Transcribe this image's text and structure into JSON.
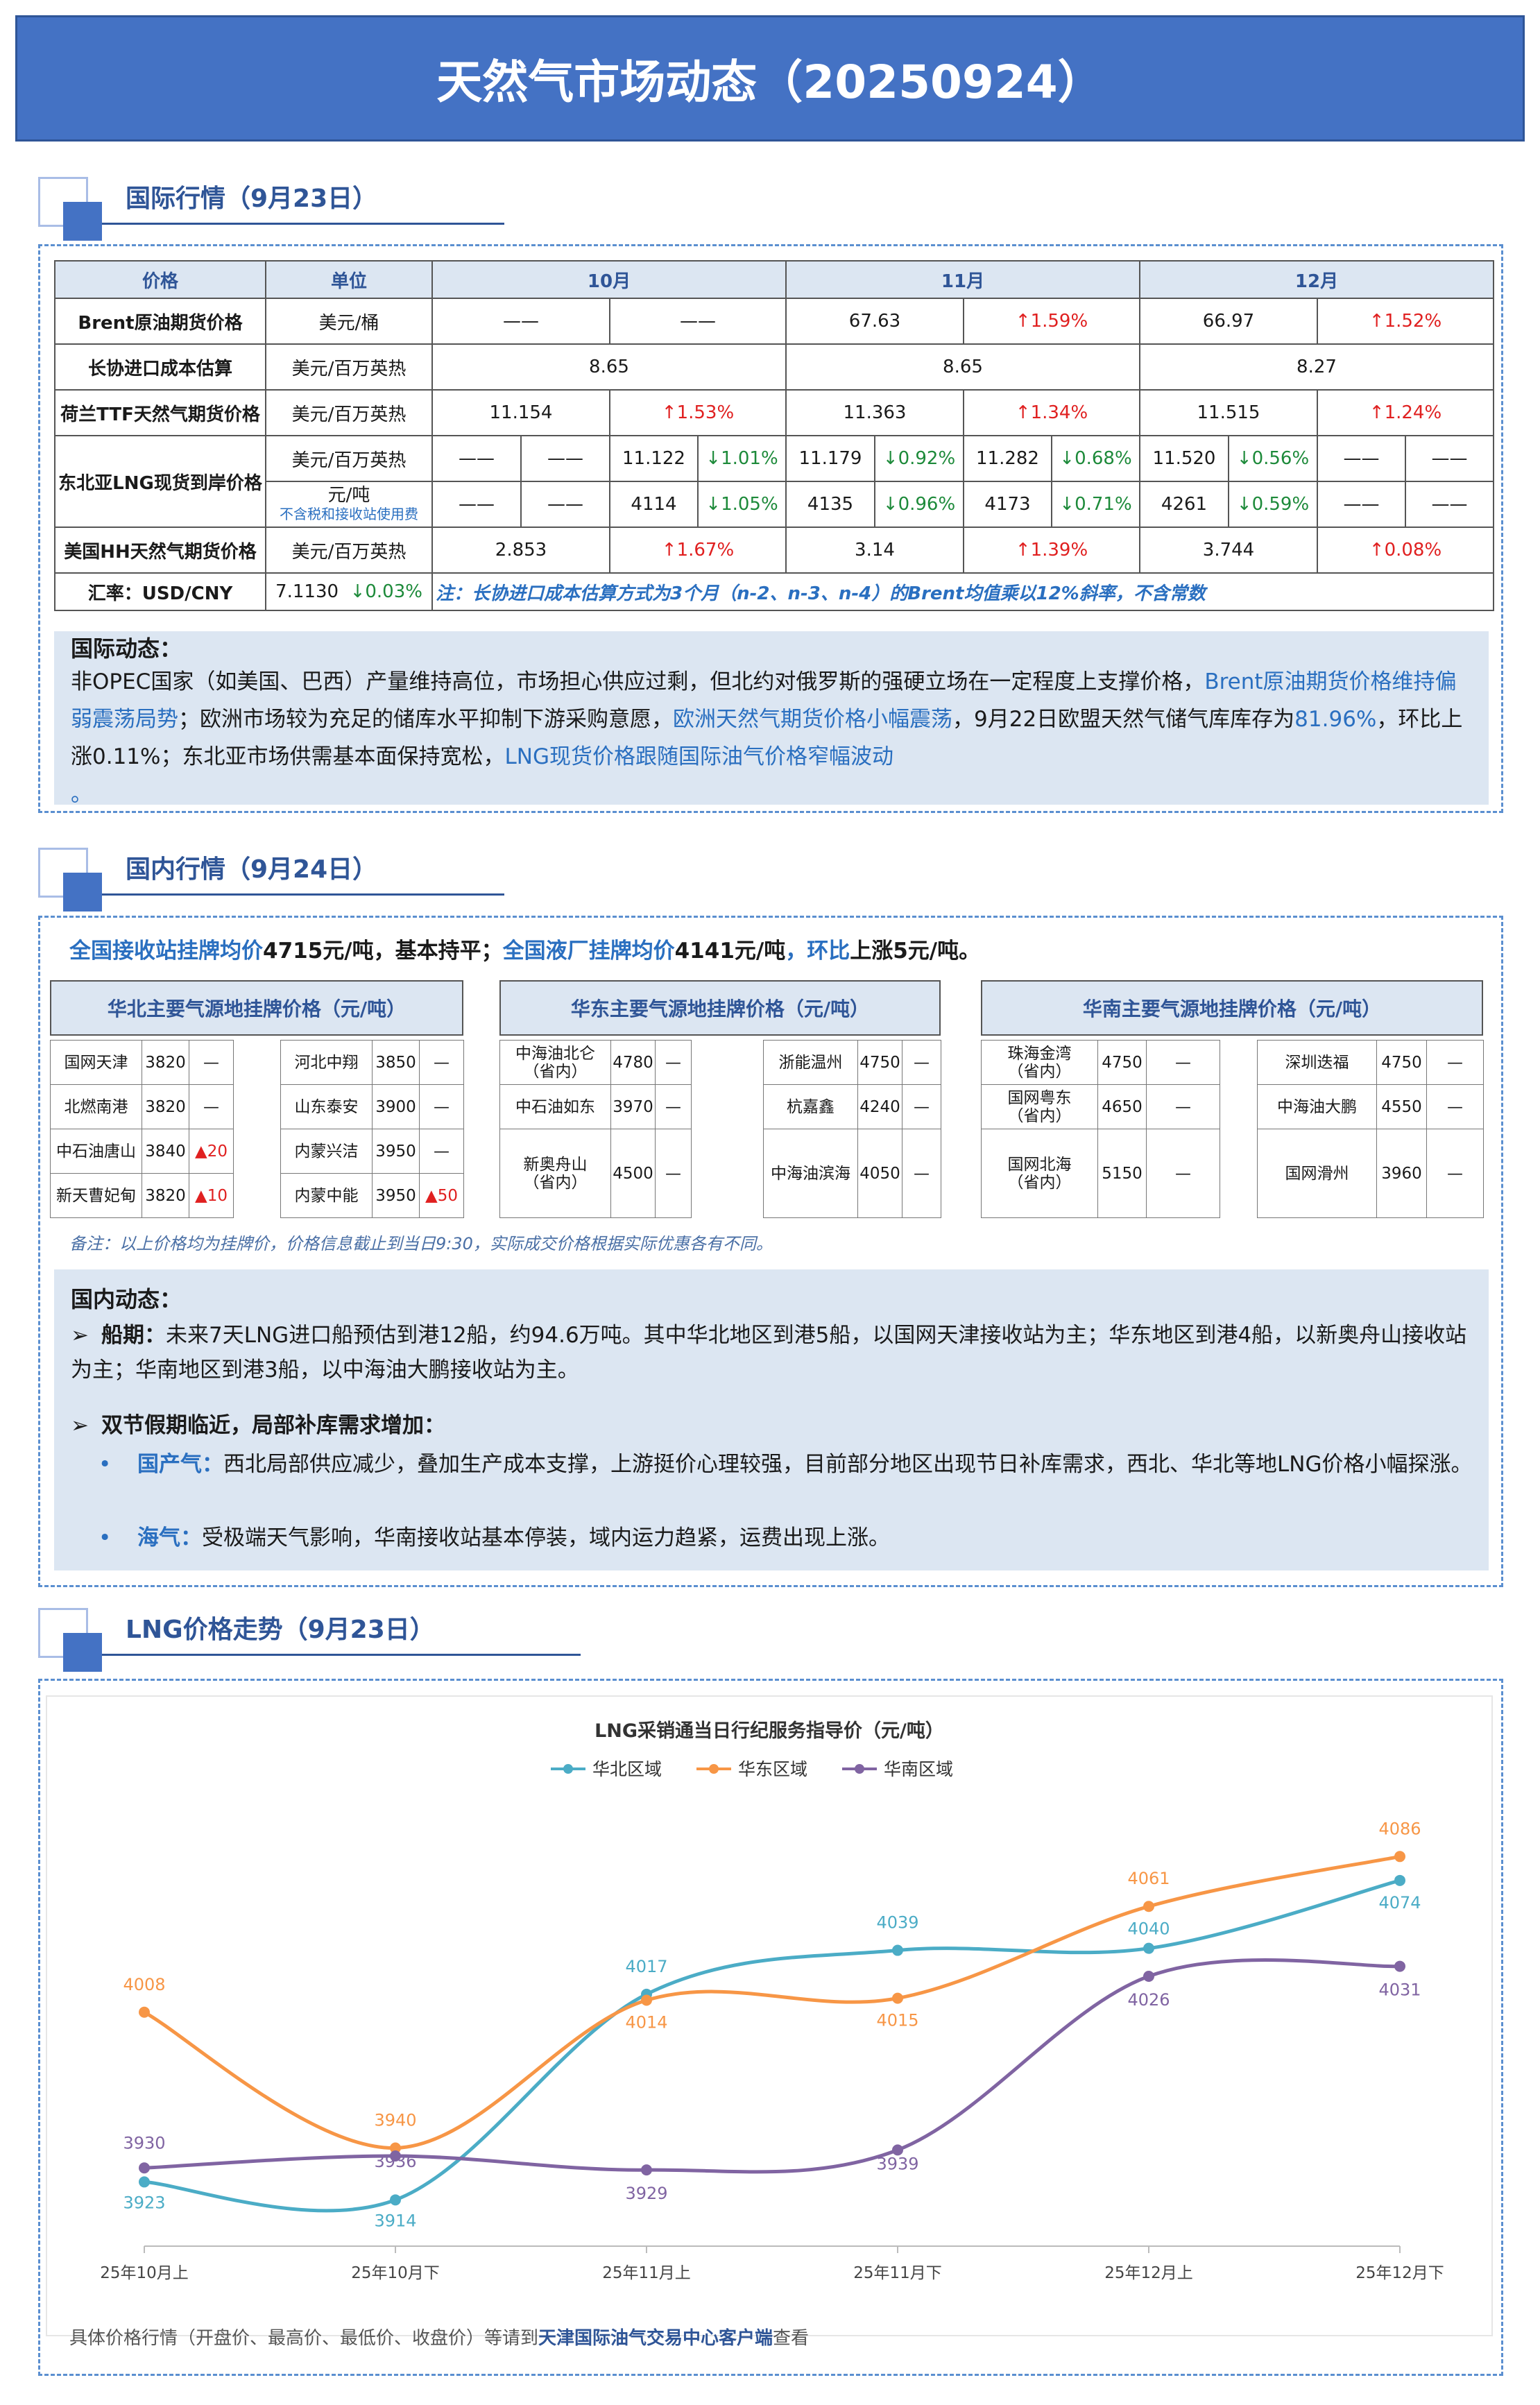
{
  "title": "天然气市场动态（20250924）",
  "sections": {
    "intl": "国际行情（9月23日）",
    "domestic": "国内行情（9月24日）",
    "trend": "LNG价格走势（9月23日）"
  },
  "intl_table": {
    "headers": [
      "价格",
      "单位",
      "10月",
      "11月",
      "12月"
    ],
    "brent": {
      "label": "Brent原油期货价格",
      "unit": "美元/桶",
      "c": [
        "——",
        "——",
        "67.63",
        "↑1.59%",
        "66.97",
        "↑1.52%"
      ]
    },
    "changxie": {
      "label": "长协进口成本估算",
      "unit": "美元/百万英热",
      "c": [
        "8.65",
        "8.65",
        "8.27"
      ]
    },
    "ttf": {
      "label": "荷兰TTF天然气期货价格",
      "unit": "美元/百万英热",
      "c": [
        "11.154",
        "↑1.53%",
        "11.363",
        "↑1.34%",
        "11.515",
        "↑1.24%"
      ]
    },
    "ne_lng": {
      "label": "东北亚LNG现货到岸价格",
      "unit1": "美元/百万英热",
      "unit2": "元/吨",
      "unit2_note": "不含税和接收站使用费",
      "row1": [
        "——",
        "——",
        "11.122",
        "↓1.01%",
        "11.179",
        "↓0.92%",
        "11.282",
        "↓0.68%",
        "11.520",
        "↓0.56%",
        "——",
        "——"
      ],
      "row2": [
        "——",
        "——",
        "4114",
        "↓1.05%",
        "4135",
        "↓0.96%",
        "4173",
        "↓0.71%",
        "4261",
        "↓0.59%",
        "——",
        "——"
      ]
    },
    "hh": {
      "label": "美国HH天然气期货价格",
      "unit": "美元/百万英热",
      "c": [
        "2.853",
        "↑1.67%",
        "3.14",
        "↑1.39%",
        "3.744",
        "↑0.08%"
      ]
    },
    "fx": {
      "label": "汇率：USD/CNY",
      "value": "7.1130",
      "change": "↓0.03%",
      "note": "注：长协进口成本估算方式为3个月（n-2、n-3、n-4）的Brent均值乘以12%斜率，不含常数"
    }
  },
  "intl_dynamics": {
    "title": "国际动态：",
    "p1": "非OPEC国家（如美国、巴西）产量维持高位，市场担心供应过剩，但北约对俄罗斯的强硬立场在一定程度上支撑价格，",
    "h1": "Brent原油期货价",
    "h1b": "格维持偏弱震荡局势",
    "p2": "；欧洲市场较为充足的储库水平抑制下游采购意愿，",
    "h2": "欧洲天然气期货价格小幅震荡",
    "p3": "，9月22日欧盟天然气储气库库存",
    "p3b": "为",
    "h3": "81.96%",
    "p4": "，环比上涨0.11%；东北亚市场供需基本面保持宽松，",
    "h4": "LNG现货价格跟随国际油气价格窄幅波动",
    "p5": "。"
  },
  "domestic_summary": {
    "a": "全国接收站挂牌均价",
    "b": "4715元/吨，基本持平；",
    "c": "全国液厂挂牌均价",
    "d": "4141元/吨",
    "e": "，环比",
    "f": "上涨5元/吨。"
  },
  "regions": {
    "north": {
      "title": "华北主要气源地挂牌价格（元/吨）",
      "left": [
        [
          "国网天津",
          "3820",
          "—"
        ],
        [
          "北燃南港",
          "3820",
          "—"
        ],
        [
          "中石油唐山",
          "3840",
          "▲20"
        ],
        [
          "新天曹妃甸",
          "3820",
          "▲10"
        ]
      ],
      "right": [
        [
          "河北中翔",
          "3850",
          "—"
        ],
        [
          "山东泰安",
          "3900",
          "—"
        ],
        [
          "内蒙兴洁",
          "3950",
          "—"
        ],
        [
          "内蒙中能",
          "3950",
          "▲50"
        ]
      ]
    },
    "east": {
      "title": "华东主要气源地挂牌价格（元/吨）",
      "left": [
        [
          "中海油北仑",
          "（省内）",
          "4780",
          "—"
        ],
        [
          "中石油如东",
          "",
          "3970",
          "—"
        ],
        [
          "新奥舟山",
          "（省内）",
          "4500",
          "—"
        ]
      ],
      "right": [
        [
          "浙能温州",
          "4750",
          "—"
        ],
        [
          "杭嘉鑫",
          "4240",
          "—"
        ],
        [
          "中海油滨海",
          "4050",
          "—"
        ]
      ]
    },
    "south": {
      "title": "华南主要气源地挂牌价格（元/吨）",
      "left": [
        [
          "珠海金湾",
          "（省内）",
          "4750",
          "—"
        ],
        [
          "国网粤东",
          "（省内）",
          "4650",
          "—"
        ],
        [
          "国网北海",
          "（省内）",
          "5150",
          "—"
        ]
      ],
      "right": [
        [
          "深圳迭福",
          "4750",
          "—"
        ],
        [
          "中海油大鹏",
          "4550",
          "—"
        ],
        [
          "国网滑州",
          "3960",
          "—"
        ]
      ]
    }
  },
  "remark": "备注：以上价格均为挂牌价，价格信息截止到当日9:30，实际成交价格根据实际优惠各有不同。",
  "domestic_dynamics": {
    "title": "国内动态：",
    "b1_label": "船期：",
    "b1_text": "未来7天LNG进口船预估到港12船，约94.6万吨。其中华北地区到港5船，以国网天津接收站为主；华东地区到港4船，以新奥舟山接收站为主；华南地区到港3船，以中海油大鹏接收站为主。",
    "b2": "双节假期临近，局部补库需求增加：",
    "s1_label": "国产气：",
    "s1_text": "西北局部供应减少，叠加生产成本支撑，上游挺价心理较强，目前部分地区出现节日补库需求，西北、华北等地LNG价格小幅探涨。",
    "s2_label": "海气：",
    "s2_text": "受极端天气影响，华南接收站基本停装，域内运力趋紧，运费出现上涨。"
  },
  "chart_data": {
    "type": "line",
    "title": "LNG采销通当日行纪服务指导价（元/吨）",
    "categories": [
      "25年10月上",
      "25年10月下",
      "25年11月上",
      "25年11月下",
      "25年12月上",
      "25年12月下"
    ],
    "series": [
      {
        "name": "华北区域",
        "color": "#4bacc6",
        "values": [
          3923,
          3914,
          4017,
          4039,
          4040,
          4074
        ]
      },
      {
        "name": "华东区域",
        "color": "#f79646",
        "values": [
          4008,
          3940,
          4014,
          4015,
          4061,
          4086
        ]
      },
      {
        "name": "华南区域",
        "color": "#8064a2",
        "values": [
          3930,
          3936,
          3929,
          3939,
          4026,
          4031
        ]
      }
    ],
    "legend": "top",
    "grid": false
  },
  "footer": {
    "a": "具体价格行情（开盘价、最高价、最低价、收盘价）等请到",
    "b": "天津国际油气交易中心客户端",
    "c": "查看"
  }
}
